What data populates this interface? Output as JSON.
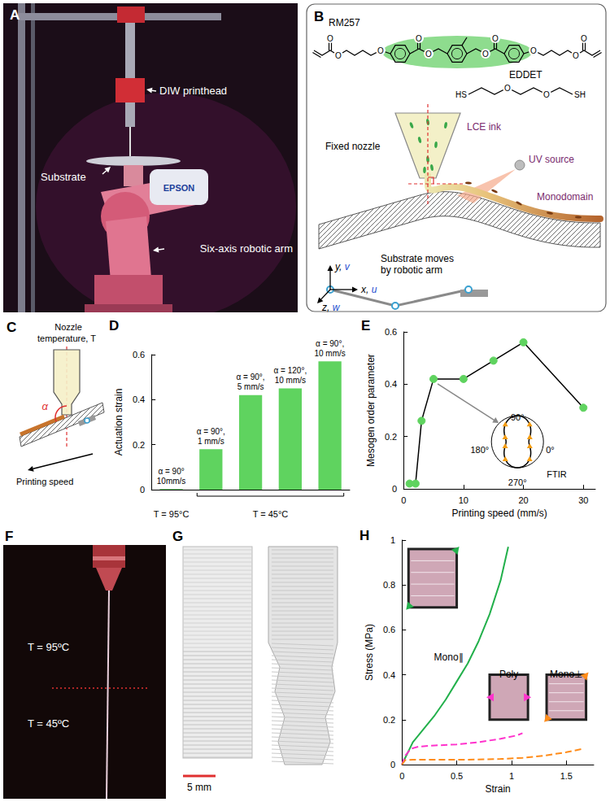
{
  "panels": {
    "A": {
      "letter": "A",
      "labels": [
        "DIW printhead",
        "Substrate",
        "Six-axis robotic arm"
      ],
      "brand": "EPSON"
    },
    "B": {
      "letter": "B",
      "molecules": [
        {
          "name": "RM257",
          "atom_label": "O"
        },
        {
          "name": "EDDET",
          "atoms": [
            "HS",
            "O",
            "O",
            "SH"
          ]
        }
      ],
      "labels": {
        "nozzle": "Fixed nozzle",
        "ink": "LCE ink",
        "uv": "UV source",
        "product": "Monodomain",
        "substrate": "Substrate moves by robotic arm"
      },
      "axes": [
        "y, v",
        "x, u",
        "z, w"
      ]
    },
    "C": {
      "letter": "C",
      "title": "Nozzle temperature, T",
      "angle": "α",
      "motion": "Printing speed"
    },
    "D": {
      "letter": "D"
    },
    "E": {
      "letter": "E"
    },
    "F": {
      "letter": "F",
      "labels": [
        "T = 95ºC",
        "T = 45ºC"
      ]
    },
    "G": {
      "letter": "G",
      "scale_bar": "5 mm"
    },
    "H": {
      "letter": "H"
    }
  },
  "chart_data": [
    {
      "type": "bar",
      "ylabel": "Actuation strain",
      "categories": [
        "α = 90° 10mm/s",
        "α = 90°, 1 mm/s",
        "α = 90°, 5 mm/s",
        "α = 120°, 10 mm/s",
        "α = 90°, 10 mm/s"
      ],
      "values": [
        0.003,
        0.18,
        0.42,
        0.45,
        0.57
      ],
      "groups": [
        {
          "label": "T = 95°C",
          "count": 1
        },
        {
          "label": "T = 45°C",
          "count": 4
        }
      ],
      "color": "#5fd35f",
      "ylim": [
        0,
        0.6
      ],
      "yticks": [
        0,
        0.2,
        0.4,
        0.6
      ],
      "grid": false,
      "tick_labels": "y"
    },
    {
      "type": "line",
      "xlabel": "Printing speed (mm/s)",
      "ylabel": "Mesogen order parameter",
      "x": [
        1,
        2,
        3,
        5,
        10,
        15,
        20,
        30
      ],
      "values": [
        0.02,
        0.02,
        0.26,
        0.42,
        0.42,
        0.49,
        0.56,
        0.31
      ],
      "color": "#5fd35f",
      "marker": "circle",
      "xlim": [
        0,
        32
      ],
      "xticks": [
        0,
        10,
        20,
        30
      ],
      "ylim": [
        0,
        0.6
      ],
      "yticks": [
        0,
        0.2,
        0.4,
        0.6
      ],
      "grid": false,
      "annotations": {
        "inset": "FTIR",
        "angles": [
          "90°",
          "180°",
          "0°",
          "270°"
        ]
      }
    },
    {
      "type": "line",
      "xlabel": "Strain",
      "ylabel": "Stress (MPa)",
      "xlim": [
        0,
        1.75
      ],
      "xticks": [
        0,
        0.5,
        1,
        1.5
      ],
      "ylim": [
        0,
        1
      ],
      "yticks": [
        0,
        0.2,
        0.4,
        0.6,
        0.8,
        1
      ],
      "grid": false,
      "series": [
        {
          "name": "Mono∥",
          "color": "#22b04b",
          "line_style": "solid",
          "x": [
            0,
            0.1,
            0.2,
            0.3,
            0.4,
            0.5,
            0.6,
            0.7,
            0.8,
            0.9,
            0.97
          ],
          "values": [
            0,
            0.1,
            0.16,
            0.22,
            0.29,
            0.37,
            0.45,
            0.55,
            0.67,
            0.82,
            0.97
          ]
        },
        {
          "name": "Poly",
          "color": "#ff33cc",
          "line_style": "dashed",
          "x": [
            0,
            0.03,
            0.08,
            0.15,
            0.3,
            0.5,
            0.7,
            0.9,
            1.05,
            1.1
          ],
          "values": [
            0,
            0.04,
            0.07,
            0.08,
            0.085,
            0.09,
            0.1,
            0.115,
            0.13,
            0.14
          ]
        },
        {
          "name": "Mono⊥",
          "color": "#ff8c1a",
          "line_style": "dashed",
          "x": [
            0,
            0.03,
            0.1,
            0.3,
            0.6,
            0.9,
            1.1,
            1.3,
            1.5,
            1.65
          ],
          "values": [
            0,
            0.02,
            0.022,
            0.022,
            0.022,
            0.025,
            0.03,
            0.04,
            0.055,
            0.07
          ]
        }
      ]
    }
  ]
}
